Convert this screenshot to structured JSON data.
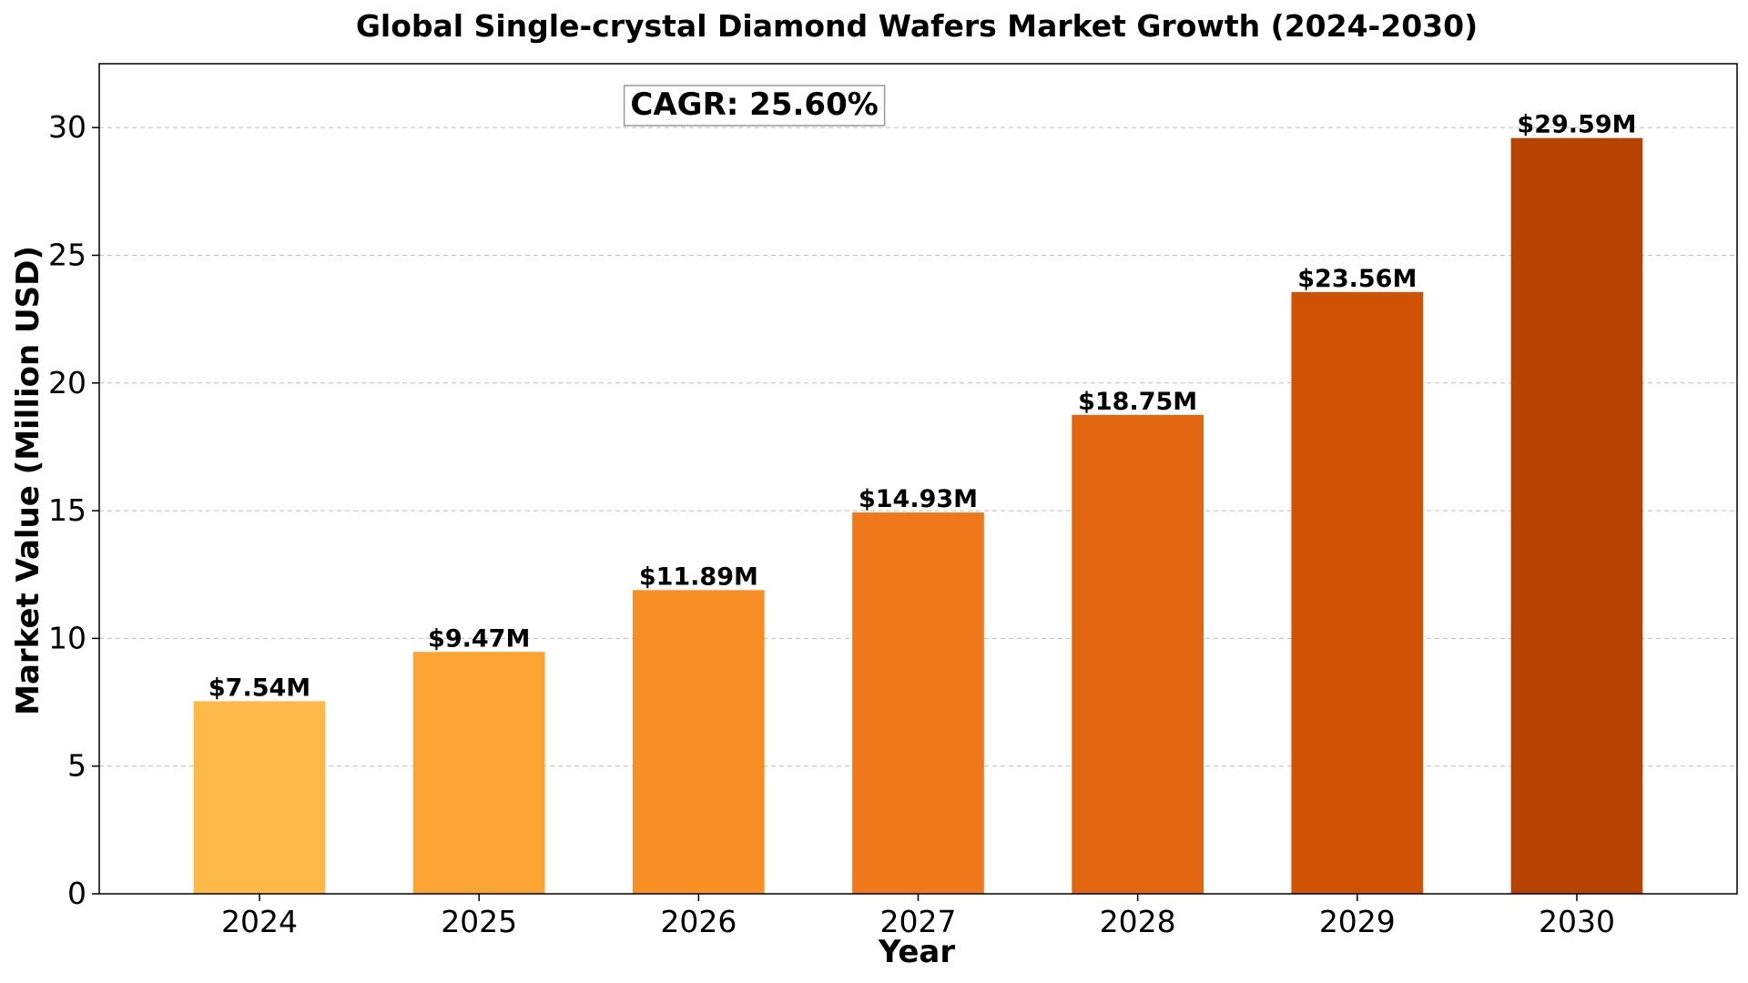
{
  "chart_data": {
    "type": "bar",
    "title": "Global Single-crystal Diamond Wafers Market Growth (2024-2030)",
    "xlabel": "Year",
    "ylabel": "Market Value (Million USD)",
    "categories": [
      "2024",
      "2025",
      "2026",
      "2027",
      "2028",
      "2029",
      "2030"
    ],
    "values": [
      7.54,
      9.47,
      11.89,
      14.93,
      18.75,
      23.56,
      29.59
    ],
    "data_labels": [
      "$7.54M",
      "$9.47M",
      "$11.89M",
      "$14.93M",
      "$18.75M",
      "$23.56M",
      "$29.59M"
    ],
    "bar_colors": [
      "#fdb947",
      "#fca433",
      "#f78f25",
      "#ef781b",
      "#e2650f",
      "#d05204",
      "#b74303"
    ],
    "ylim": [
      0,
      32.5
    ],
    "yticks": [
      0,
      5,
      10,
      15,
      20,
      25,
      30
    ],
    "grid": "horizontal dashed",
    "annotation": "CAGR: 25.60%"
  }
}
